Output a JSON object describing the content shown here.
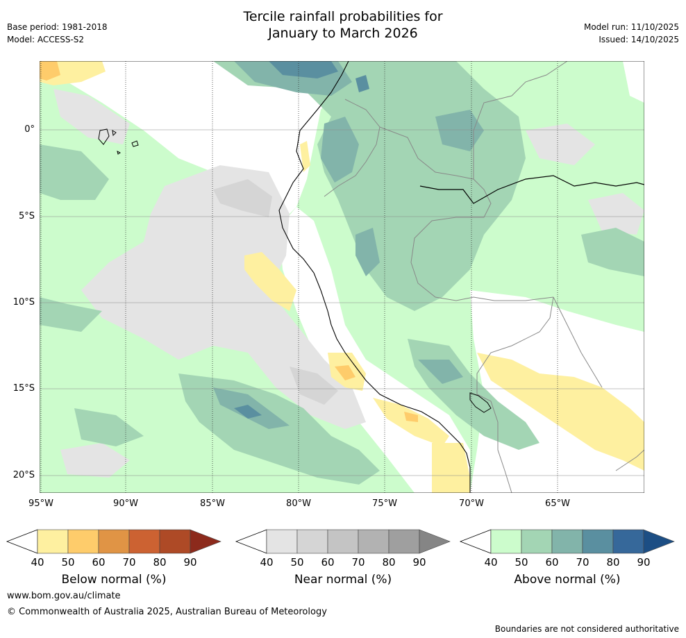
{
  "header": {
    "title_line1": "Tercile rainfall probabilities for",
    "title_line2": "January to March 2026",
    "base_period": "Base period: 1981-2018",
    "model": "Model: ACCESS-S2",
    "model_run": "Model run: 11/10/2025",
    "issued": "Issued: 14/10/2025"
  },
  "map": {
    "lat_labels": [
      "0°",
      "5°S",
      "10°S",
      "15°S",
      "20°S"
    ],
    "lon_labels": [
      "95°W",
      "90°W",
      "85°W",
      "80°W",
      "75°W",
      "70°W",
      "65°W"
    ]
  },
  "legend": {
    "below": {
      "caption": "Below normal (%)",
      "ticks": [
        "40",
        "50",
        "60",
        "70",
        "80",
        "90"
      ],
      "colors": [
        "#fef0a0",
        "#fecc6b",
        "#e09445",
        "#cc6232",
        "#ae4a26",
        "#8c2a1c"
      ]
    },
    "near": {
      "caption": "Near normal (%)",
      "ticks": [
        "40",
        "50",
        "60",
        "70",
        "80",
        "90"
      ],
      "colors": [
        "#e4e4e4",
        "#d5d5d5",
        "#c4c4c4",
        "#b2b2b2",
        "#9f9f9f",
        "#858585"
      ]
    },
    "above": {
      "caption": "Above normal (%)",
      "ticks": [
        "40",
        "50",
        "60",
        "70",
        "80",
        "90"
      ],
      "colors": [
        "#ccfccc",
        "#a3d5b4",
        "#82b4aa",
        "#5a8fa0",
        "#36689a",
        "#1c4e84"
      ]
    }
  },
  "footer": {
    "url": "www.bom.gov.au/climate",
    "copyright": "© Commonwealth of Australia 2025, Australian Bureau of Meteorology",
    "note": "Boundaries are not considered authoritative"
  }
}
